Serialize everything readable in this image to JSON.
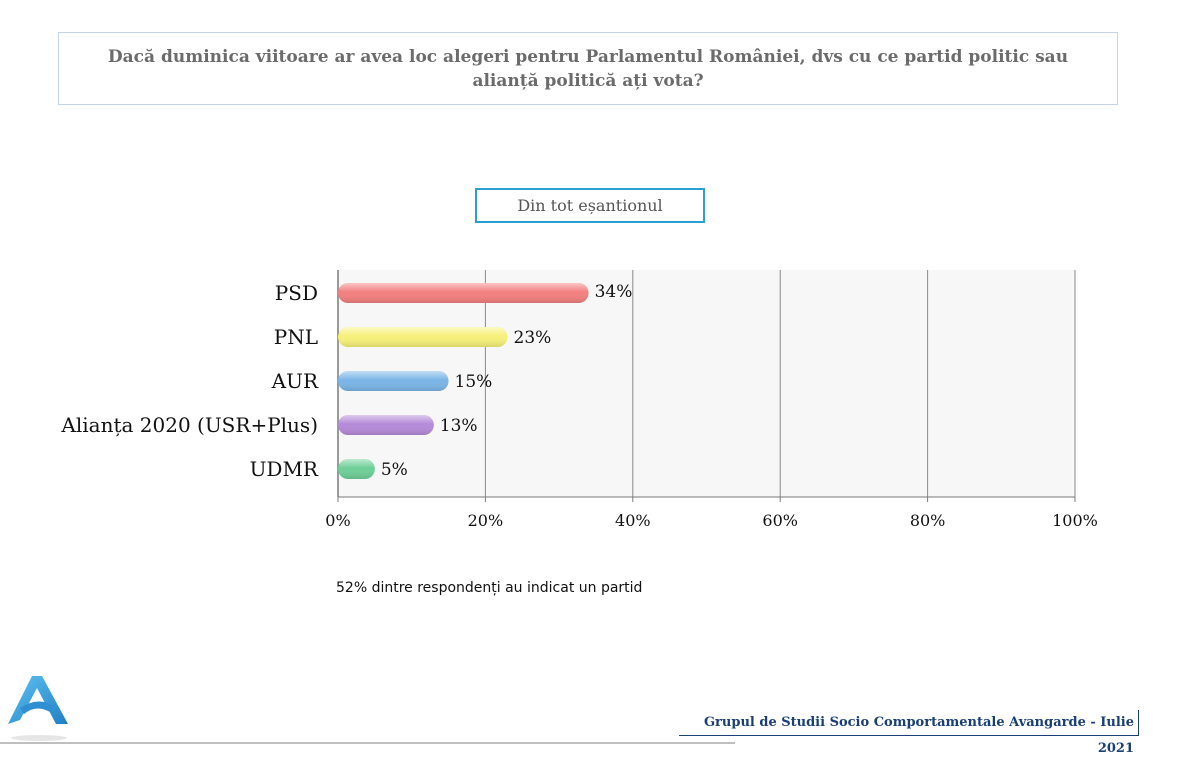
{
  "question": "Dacă duminica viitoare ar avea loc alegeri pentru Parlamentul României, dvs cu ce partid politic sau alianță politică ați vota?",
  "subset_label": "Din tot eșantionul",
  "chart_data": {
    "type": "bar",
    "orientation": "horizontal",
    "categories": [
      "PSD",
      "PNL",
      "AUR",
      "Alianța 2020 (USR+Plus)",
      "UDMR"
    ],
    "values": [
      34,
      23,
      15,
      13,
      5
    ],
    "value_labels": [
      "34%",
      "23%",
      "15%",
      "13%",
      "5%"
    ],
    "colors": [
      "#f27f7f",
      "#f6f07a",
      "#7ab5e6",
      "#b58ad8",
      "#6fcf97"
    ],
    "xlim": [
      0,
      100
    ],
    "x_ticks": [
      "0%",
      "20%",
      "40%",
      "60%",
      "80%",
      "100%"
    ],
    "grid": true
  },
  "footnote": "52% dintre respondenți au indicat un partid",
  "source": "Grupul de Studii Socio Comportamentale Avangarde   - Iulie 2021"
}
